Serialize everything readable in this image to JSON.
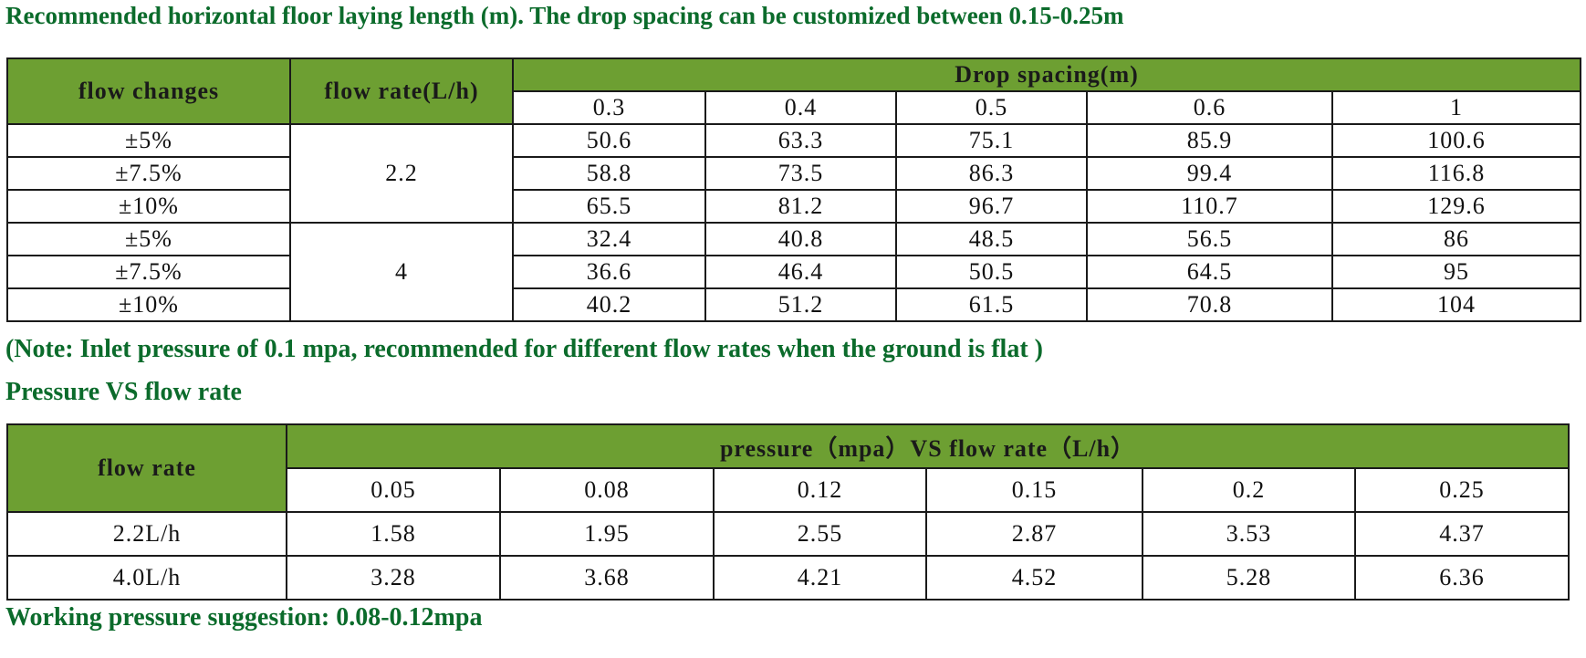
{
  "heading": "Recommended horizontal floor laying length (m). The drop spacing can be customized between 0.15-0.25m",
  "table1": {
    "col_flow_changes": "flow changes",
    "col_flow_rate": "flow rate(L/h)",
    "col_drop_spacing": "Drop spacing(m)",
    "spacings": [
      "0.3",
      "0.4",
      "0.5",
      "0.6",
      "1"
    ],
    "groups": [
      {
        "flow_rate": "2.2",
        "rows": [
          {
            "change": "±5%",
            "values": [
              "50.6",
              "63.3",
              "75.1",
              "85.9",
              "100.6"
            ]
          },
          {
            "change": "±7.5%",
            "values": [
              "58.8",
              "73.5",
              "86.3",
              "99.4",
              "116.8"
            ]
          },
          {
            "change": "±10%",
            "values": [
              "65.5",
              "81.2",
              "96.7",
              "110.7",
              "129.6"
            ]
          }
        ]
      },
      {
        "flow_rate": "4",
        "rows": [
          {
            "change": "±5%",
            "values": [
              "32.4",
              "40.8",
              "48.5",
              "56.5",
              "86"
            ]
          },
          {
            "change": "±7.5%",
            "values": [
              "36.6",
              "46.4",
              "50.5",
              "64.5",
              "95"
            ]
          },
          {
            "change": "±10%",
            "values": [
              "40.2",
              "51.2",
              "61.5",
              "70.8",
              "104"
            ]
          }
        ]
      }
    ]
  },
  "note": "(Note: Inlet pressure of 0.1 mpa, recommended for different flow rates when the ground is flat )",
  "heading2": "Pressure VS flow rate",
  "table2": {
    "col_flow_rate": "flow rate",
    "col_pressure": "pressure（mpa）VS flow rate（L/h）",
    "pressures": [
      "0.05",
      "0.08",
      "0.12",
      "0.15",
      "0.2",
      "0.25"
    ],
    "rows": [
      {
        "label": "2.2L/h",
        "values": [
          "1.58",
          "1.95",
          "2.55",
          "2.87",
          "3.53",
          "4.37"
        ]
      },
      {
        "label": "4.0L/h",
        "values": [
          "3.28",
          "3.68",
          "4.21",
          "4.52",
          "5.28",
          "6.36"
        ]
      }
    ]
  },
  "footer": "Working pressure suggestion: 0.08-0.12mpa",
  "colors": {
    "header_green": "#6d9f32",
    "text_green": "#0b6b2b"
  }
}
